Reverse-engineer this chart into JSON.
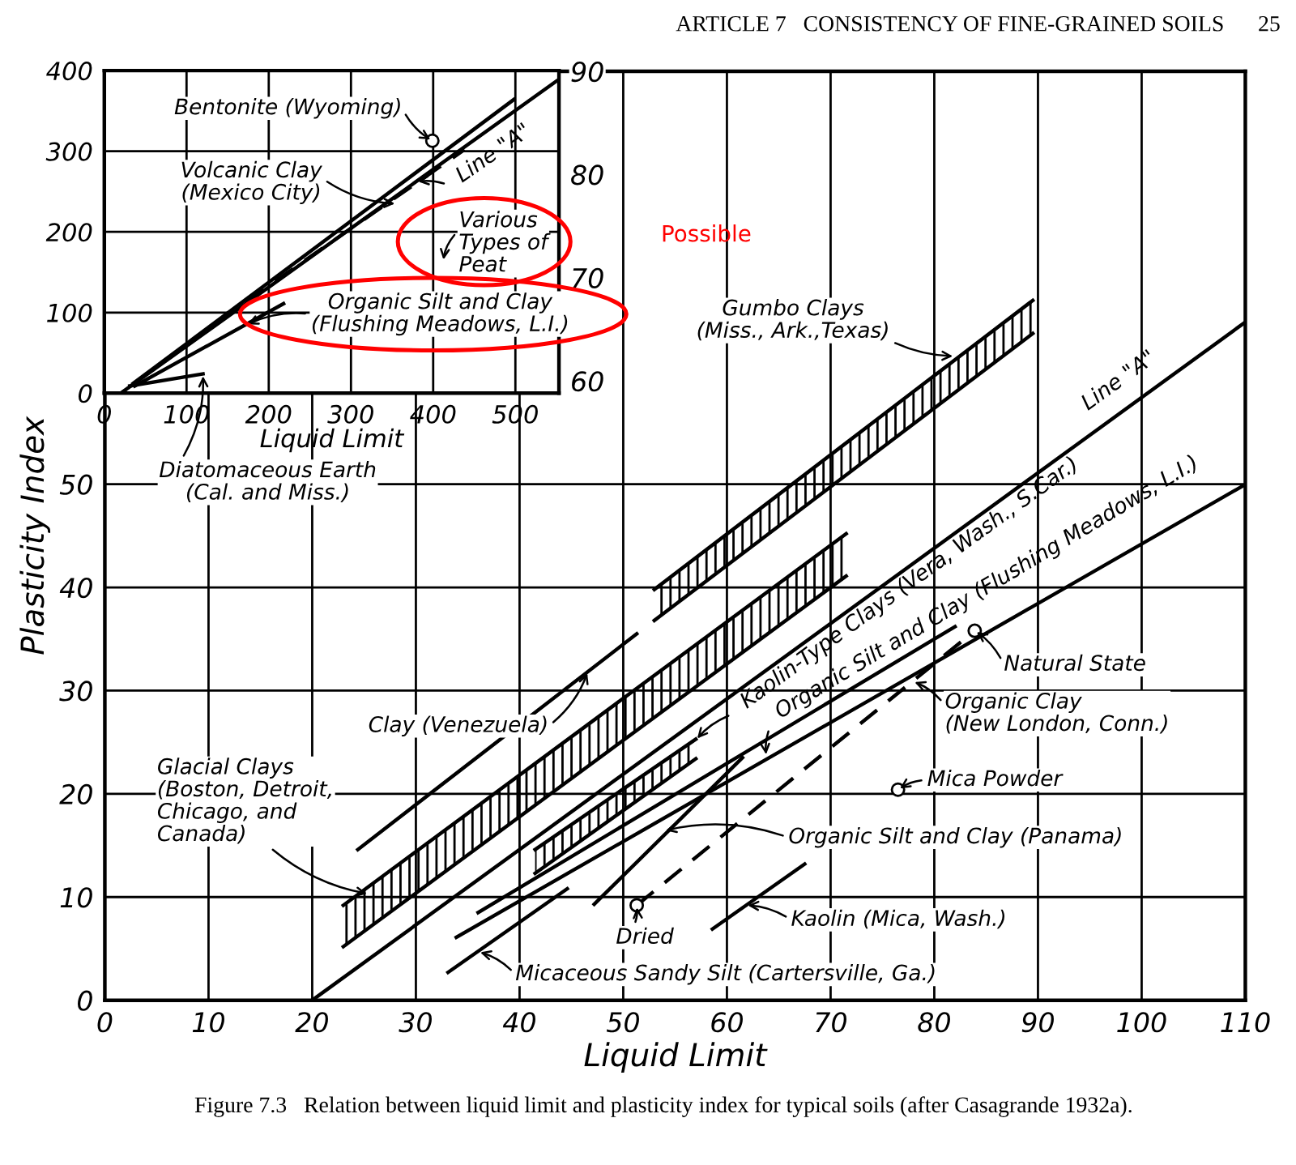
{
  "chart_data": [
    {
      "type": "line",
      "xlabel": "Liquid Limit",
      "ylabel": "Plasticity Index",
      "xlim": [
        0,
        110
      ],
      "ylim": [
        0,
        90
      ],
      "xticks": [
        0,
        10,
        20,
        30,
        40,
        50,
        60,
        70,
        80,
        90,
        100,
        110
      ],
      "yticks": [
        0,
        10,
        20,
        30,
        40,
        50
      ],
      "y2lim": [
        0,
        90
      ],
      "y2ticks": [
        60,
        70,
        80,
        90
      ],
      "grid": true,
      "series": [
        {
          "color": "#000000",
          "x": [
            20,
            110
          ],
          "values": [
            0,
            65.7
          ]
        },
        {
          "color": "#000000",
          "x": [
            24.4,
            51.3
          ],
          "values": [
            14.6,
            35.5
          ]
        },
        {
          "color": "#000000",
          "x": [
            53,
            89.5
          ],
          "values": [
            39.8,
            67.8
          ]
        },
        {
          "color": "#000000",
          "x": [
            53,
            89.5
          ],
          "values": [
            36.8,
            64.6
          ]
        },
        {
          "color": "#000000",
          "x": [
            23,
            71.5
          ],
          "values": [
            9.2,
            45.2
          ]
        },
        {
          "color": "#000000",
          "x": [
            23,
            71.5
          ],
          "values": [
            5.2,
            41.1
          ]
        },
        {
          "color": "#000000",
          "x": [
            41.5,
            57
          ],
          "values": [
            14.6,
            25.3
          ]
        },
        {
          "color": "#000000",
          "x": [
            41.5,
            57
          ],
          "values": [
            12.3,
            23.4
          ]
        },
        {
          "color": "#000000",
          "x": [
            33.9,
            109.7
          ],
          "values": [
            6.1,
            49.8
          ]
        },
        {
          "color": "#000000",
          "x": [
            36,
            82
          ],
          "values": [
            8.5,
            36.2
          ]
        },
        {
          "color": "#000000",
          "x": [
            47.2,
            61.5
          ],
          "values": [
            9.3,
            23.5
          ]
        },
        {
          "color": "#000000",
          "line_style": "dashed",
          "x": [
            51.3,
            83.9
          ],
          "values": [
            9.2,
            35.8
          ]
        },
        {
          "color": "#000000",
          "x": [
            33.1,
            44.6
          ],
          "values": [
            2.7,
            10.8
          ]
        },
        {
          "color": "#000000",
          "x": [
            58.6,
            67.5
          ],
          "values": [
            6.9,
            13.2
          ]
        },
        {
          "type": "scatter",
          "color": "#000000",
          "marker": "circle",
          "x": [
            51.3,
            83.9,
            76.5
          ],
          "values": [
            9.2,
            35.8,
            20.4
          ]
        }
      ],
      "annotations": [
        {
          "text": "Gumbo Clays\n(Miss., Ark.,Texas)",
          "x": 82,
          "y": 62.4
        },
        {
          "text": "Line \"A\"",
          "x": 96,
          "y": 55.5
        },
        {
          "text": "Kaolin-Type Clays (Vera, Wash., S.Car.)",
          "x": 57,
          "y": 25.2
        },
        {
          "text": "Organic Silt and Clay (Flushing Meadows, L.I.)",
          "x": 63.8,
          "y": 23.6
        },
        {
          "text": "Natural State",
          "x": 83.9,
          "y": 35.8
        },
        {
          "text": "Organic Clay\n(New London, Conn.)",
          "x": 77.9,
          "y": 30.9
        },
        {
          "text": "Mica Powder",
          "x": 76.5,
          "y": 20.4
        },
        {
          "text": "Organic Silt and Clay (Panama)",
          "x": 53.9,
          "y": 16.4
        },
        {
          "text": "Kaolin (Mica, Wash.)",
          "x": 61.8,
          "y": 9.2
        },
        {
          "text": "Dried",
          "x": 51.3,
          "y": 9.2
        },
        {
          "text": "Micaceous Sandy Silt (Cartersville, Ga.)",
          "x": 36,
          "y": 4.7
        },
        {
          "text": "Clay (Venezuela)",
          "x": 46.6,
          "y": 31.9
        },
        {
          "text": "Glacial Clays\n(Boston, Detroit,\nChicago, and\nCanada)",
          "x": 25.5,
          "y": 10.3
        },
        "ARTICLE 7   CONSISTENCY OF FINE-GRAINED SOILS      25",
        "Figure 7.3   Relation between liquid limit and plasticity index for typical soils (after Casagrande 1932a).",
        "Possible"
      ]
    },
    {
      "type": "line",
      "xlabel": "Liquid Limit",
      "xlim": [
        0,
        553
      ],
      "ylim": [
        0,
        400
      ],
      "xticks": [
        0,
        100,
        200,
        300,
        400,
        500
      ],
      "yticks": [
        0,
        100,
        200,
        300,
        400
      ],
      "grid": true,
      "series": [
        {
          "color": "#000000",
          "x": [
            20,
            550
          ],
          "values": [
            0,
            387
          ]
        },
        {
          "color": "#000000",
          "x": [
            35,
            498
          ],
          "values": [
            12,
            364
          ]
        },
        {
          "color": "#000000",
          "line_style": "dashed",
          "x": [
            136,
            438
          ],
          "values": [
            88,
            302
          ]
        },
        {
          "color": "#000000",
          "x": [
            37,
            218
          ],
          "values": [
            9,
            111
          ]
        },
        {
          "color": "#000000",
          "x": [
            31,
            120
          ],
          "values": [
            9,
            24
          ]
        },
        {
          "type": "scatter",
          "color": "#000000",
          "marker": "circle",
          "x": [
            399
          ],
          "values": [
            313
          ]
        }
      ],
      "annotations": [
        {
          "text": "Bentonite (Wyoming)",
          "x": 399,
          "y": 313
        },
        {
          "text": "Volcanic Clay\n(Mexico City)",
          "x": 356,
          "y": 235
        },
        {
          "text": "Line \"A\"",
          "x": 379,
          "y": 262
        },
        "Various\nTypes of\nPeat",
        {
          "text": "Organic Silt and Clay\n(Flushing Meadows, L.I.)",
          "x": 172,
          "y": 84
        },
        {
          "text": "Diatomaceous Earth\n(Cal. and Miss.)",
          "x": 120,
          "y": 24
        }
      ]
    }
  ]
}
